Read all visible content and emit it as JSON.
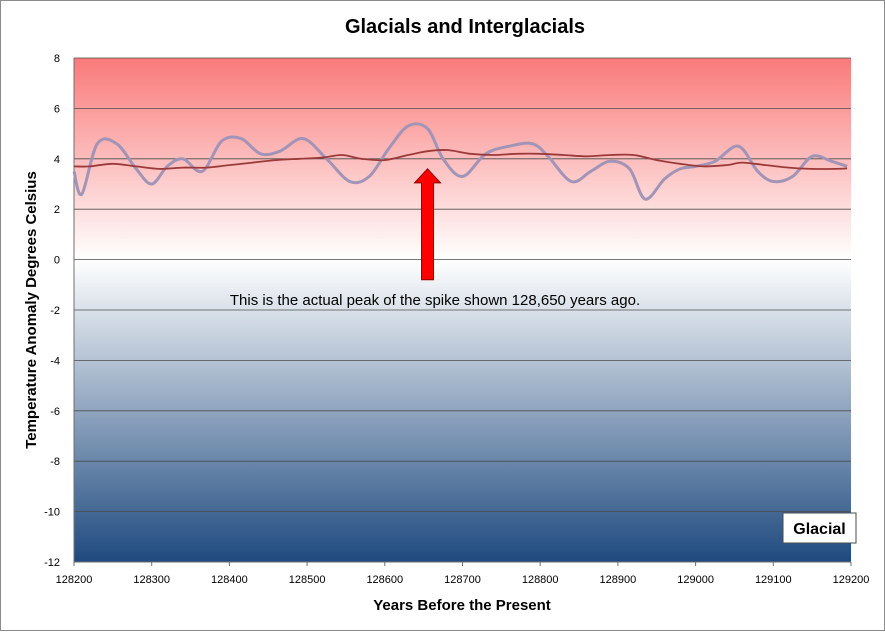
{
  "chart_data": {
    "type": "line",
    "title": "Glacials and Interglacials",
    "xlabel": "Years Before the Present",
    "ylabel": "Temperature Anomaly Degrees Celsius",
    "xlim": [
      128200,
      129200
    ],
    "ylim": [
      -12,
      8
    ],
    "x_ticks": [
      128200,
      128300,
      128400,
      128500,
      128600,
      128700,
      128800,
      128900,
      129000,
      129100,
      129200
    ],
    "y_ticks": [
      8,
      6,
      4,
      2,
      0,
      -2,
      -4,
      -6,
      -8,
      -10,
      -12
    ],
    "grid": "horizontal",
    "background_gradient": {
      "top": "#fa7a7a",
      "middle": "#ffffff",
      "bottom": "#1f4a7f"
    },
    "series": [
      {
        "color": "#a294b6",
        "x": [
          128200,
          128210,
          128230,
          128255,
          128280,
          128300,
          128320,
          128340,
          128365,
          128390,
          128415,
          128440,
          128465,
          128495,
          128525,
          128555,
          128580,
          128605,
          128630,
          128655,
          128675,
          128700,
          128730,
          128760,
          128790,
          128810,
          128840,
          128865,
          128890,
          128915,
          128935,
          128960,
          128980,
          129000,
          129025,
          129055,
          129080,
          129100,
          129125,
          129150,
          129175,
          129195
        ],
        "y": [
          3.5,
          2.6,
          4.6,
          4.6,
          3.6,
          3.0,
          3.7,
          4.0,
          3.5,
          4.7,
          4.8,
          4.2,
          4.3,
          4.8,
          4.0,
          3.1,
          3.3,
          4.4,
          5.3,
          5.2,
          4.0,
          3.3,
          4.2,
          4.5,
          4.6,
          4.1,
          3.1,
          3.5,
          3.9,
          3.6,
          2.4,
          3.2,
          3.6,
          3.7,
          3.9,
          4.5,
          3.5,
          3.1,
          3.3,
          4.1,
          3.9,
          3.7
        ]
      },
      {
        "color": "#9c3a3a",
        "x": [
          128200,
          128220,
          128250,
          128280,
          128310,
          128340,
          128370,
          128400,
          128430,
          128460,
          128490,
          128520,
          128545,
          128570,
          128600,
          128630,
          128655,
          128680,
          128710,
          128740,
          128770,
          128800,
          128830,
          128860,
          128890,
          128920,
          128950,
          128980,
          129010,
          129040,
          129060,
          129090,
          129120,
          129150,
          129180,
          129195
        ],
        "y": [
          3.7,
          3.7,
          3.8,
          3.7,
          3.6,
          3.65,
          3.65,
          3.75,
          3.85,
          3.95,
          4.0,
          4.05,
          4.15,
          4.0,
          3.95,
          4.15,
          4.3,
          4.35,
          4.2,
          4.15,
          4.2,
          4.2,
          4.15,
          4.1,
          4.15,
          4.15,
          3.95,
          3.8,
          3.7,
          3.75,
          3.85,
          3.75,
          3.65,
          3.6,
          3.6,
          3.62
        ]
      }
    ],
    "annotation": {
      "text": "This is the actual peak of the spike shown 128,650 years ago.",
      "arrow_x": 128655,
      "arrow_from_y": -0.8,
      "arrow_to_y": 3.6,
      "arrow_color": "#ff0000"
    },
    "legend": {
      "label": "Glacial",
      "placement": "bottom-right"
    }
  }
}
